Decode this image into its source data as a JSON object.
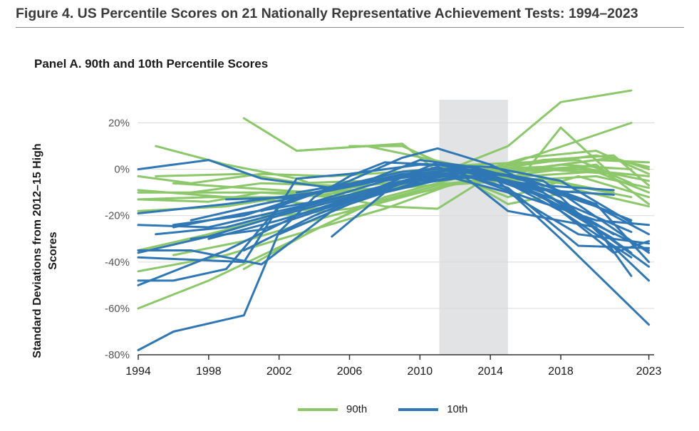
{
  "figure_title": "Figure 4. US Percentile Scores on 21 Nationally Representative Achievement Tests: 1994–2023",
  "panel_title": "Panel A. 90th and 10th Percentile Scores",
  "colors": {
    "p90": "#8cc76a",
    "p10": "#2f77b5",
    "shade": "#e2e3e5",
    "grid": "#d9d9d9",
    "axis": "#333333"
  },
  "chart_data": {
    "type": "line",
    "title": "Panel A. 90th and 10th Percentile Scores",
    "ylabel": "Standard Deviations from 2012–15 High Scores",
    "xlabel": "",
    "x_ticks": [
      1994,
      1998,
      2002,
      2006,
      2010,
      2014,
      2018,
      2023
    ],
    "y_ticks": [
      20,
      0,
      -20,
      -40,
      -60,
      -80
    ],
    "y_tick_labels": [
      "20%",
      "0%",
      "-20%",
      "-40%",
      "-60%",
      "-80%"
    ],
    "xlim": [
      1994,
      2023.3
    ],
    "ylim": [
      -80,
      30
    ],
    "grid": "horizontal",
    "shaded_region": [
      2011.1,
      2015
    ],
    "legend": [
      {
        "name": "90th",
        "key": "p90"
      },
      {
        "name": "10th",
        "key": "p10"
      }
    ],
    "series": [
      {
        "group": "p90",
        "x": [
          2000,
          2003,
          2009,
          2011
        ],
        "y": [
          22,
          8,
          11,
          -1
        ]
      },
      {
        "group": "p90",
        "x": [
          1995,
          1999,
          2003,
          2006,
          2011,
          2015,
          2018,
          2022
        ],
        "y": [
          10,
          2,
          -4,
          -12,
          -2,
          10,
          29,
          34
        ]
      },
      {
        "group": "p90",
        "x": [
          1994,
          1997,
          2001,
          2005,
          2009,
          2013,
          2019,
          2022
        ],
        "y": [
          -3,
          -6,
          -2,
          -3,
          -1,
          2,
          4,
          -6
        ]
      },
      {
        "group": "p90",
        "x": [
          1994,
          2004,
          2008,
          2011,
          2015,
          2022
        ],
        "y": [
          -10,
          -10,
          -16,
          -17,
          2,
          20
        ]
      },
      {
        "group": "p90",
        "x": [
          2006,
          2009,
          2012,
          2016,
          2018,
          2021
        ],
        "y": [
          10,
          10,
          0,
          -1,
          18,
          -3
        ]
      },
      {
        "group": "p90",
        "x": [
          2003,
          2007,
          2012,
          2016,
          2020,
          2023
        ],
        "y": [
          8,
          10,
          2,
          0,
          4,
          3
        ]
      },
      {
        "group": "p90",
        "x": [
          1994,
          1998,
          2003,
          2007,
          2011,
          2015,
          2020,
          2023
        ],
        "y": [
          -60,
          -48,
          -30,
          -15,
          -7,
          -5,
          -3,
          -8
        ]
      },
      {
        "group": "p90",
        "x": [
          1994,
          1999,
          2003,
          2008,
          2012,
          2016,
          2020,
          2023
        ],
        "y": [
          -44,
          -37,
          -28,
          -17,
          -6,
          -2,
          2,
          -15
        ]
      },
      {
        "group": "p90",
        "x": [
          1994,
          1998,
          2002,
          2006,
          2010,
          2014,
          2019,
          2023
        ],
        "y": [
          -35,
          -28,
          -20,
          -12,
          -5,
          -1,
          1,
          -5
        ]
      },
      {
        "group": "p90",
        "x": [
          1995,
          2000,
          2005,
          2010,
          2014,
          2018,
          2022
        ],
        "y": [
          -3,
          -2,
          -8,
          -5,
          -3,
          -6,
          -12
        ]
      },
      {
        "group": "p90",
        "x": [
          1994,
          1998,
          2001,
          2005,
          2009,
          2013,
          2017,
          2021
        ],
        "y": [
          -13,
          -14,
          -10,
          -12,
          -8,
          -5,
          -4,
          -10
        ]
      },
      {
        "group": "p90",
        "x": [
          1994,
          1999,
          2004,
          2008,
          2012,
          2016,
          2020,
          2023
        ],
        "y": [
          -18,
          -16,
          -10,
          -8,
          -4,
          2,
          6,
          1
        ]
      },
      {
        "group": "p90",
        "x": [
          1996,
          2000,
          2004,
          2008,
          2012,
          2016,
          2020,
          2023
        ],
        "y": [
          -37,
          -31,
          -22,
          -14,
          -6,
          -3,
          -1,
          -10
        ]
      },
      {
        "group": "p90",
        "x": [
          1994,
          1999,
          2004,
          2009,
          2013,
          2017,
          2021
        ],
        "y": [
          -9,
          -12,
          -15,
          -7,
          -2,
          0,
          -2
        ]
      },
      {
        "group": "p90",
        "x": [
          1997,
          2001,
          2005,
          2009,
          2013,
          2017,
          2021,
          2023
        ],
        "y": [
          -10,
          -6,
          -7,
          -3,
          0,
          1,
          5,
          0
        ]
      },
      {
        "group": "p90",
        "x": [
          2000,
          2004,
          2008,
          2012,
          2016,
          2020,
          2023
        ],
        "y": [
          -43,
          -26,
          -12,
          -4,
          5,
          8,
          -2
        ]
      },
      {
        "group": "p90",
        "x": [
          1994,
          1998,
          2003,
          2007,
          2011,
          2015,
          2019,
          2023
        ],
        "y": [
          -13,
          -12,
          -12,
          -9,
          -4,
          -1,
          0,
          -3
        ]
      },
      {
        "group": "p90",
        "x": [
          2001,
          2005,
          2009,
          2013,
          2017,
          2021,
          2023
        ],
        "y": [
          -20,
          -16,
          -7,
          -1,
          4,
          6,
          -7
        ]
      },
      {
        "group": "p90",
        "x": [
          1996,
          2000,
          2004,
          2008,
          2012,
          2015,
          2019,
          2023
        ],
        "y": [
          -6,
          -8,
          -10,
          -6,
          -2,
          -15,
          -9,
          -16
        ]
      },
      {
        "group": "p90",
        "x": [
          2002,
          2006,
          2010,
          2014,
          2018,
          2022
        ],
        "y": [
          -20,
          -17,
          -10,
          -3,
          2,
          0
        ]
      },
      {
        "group": "p90",
        "x": [
          2003,
          2007,
          2011,
          2015,
          2019,
          2023
        ],
        "y": [
          -6,
          -5,
          0,
          -12,
          -3,
          -12
        ]
      },
      {
        "group": "p10",
        "x": [
          1994,
          1996,
          2000,
          2002,
          2004,
          2006,
          2008,
          2011,
          2014,
          2018,
          2023
        ],
        "y": [
          -78,
          -70,
          -63,
          -27,
          -12,
          -3,
          3,
          2,
          -2,
          -30,
          -67
        ]
      },
      {
        "group": "p10",
        "x": [
          1994,
          1998,
          2001,
          2005,
          2009,
          2013,
          2016,
          2019,
          2022
        ],
        "y": [
          0,
          4,
          -4,
          -8,
          -1,
          1,
          -5,
          -20,
          -36
        ]
      },
      {
        "group": "p10",
        "x": [
          1994,
          1999,
          2003,
          2007,
          2011,
          2015,
          2019,
          2023
        ],
        "y": [
          -50,
          -35,
          -20,
          -10,
          3,
          -5,
          -20,
          -42
        ]
      },
      {
        "group": "p10",
        "x": [
          1994,
          1998,
          2002,
          2006,
          2010,
          2013,
          2017,
          2023
        ],
        "y": [
          -36,
          -29,
          -20,
          -12,
          -4,
          0,
          -5,
          -36
        ]
      },
      {
        "group": "p10",
        "x": [
          1994,
          1996,
          1999,
          2002,
          2006,
          2009,
          2011,
          2014,
          2018,
          2023
        ],
        "y": [
          -48,
          -48,
          -43,
          -16,
          -5,
          5,
          9,
          2,
          -12,
          -48
        ]
      },
      {
        "group": "p10",
        "x": [
          1994,
          2000,
          2003,
          2006,
          2010,
          2014,
          2018,
          2022
        ],
        "y": [
          -38,
          -40,
          -4,
          -2,
          2,
          1,
          -5,
          -23
        ]
      },
      {
        "group": "p10",
        "x": [
          1995,
          1999,
          2003,
          2007,
          2011,
          2015,
          2019,
          2023
        ],
        "y": [
          -28,
          -25,
          -17,
          -9,
          -2,
          -10,
          -28,
          -32
        ]
      },
      {
        "group": "p10",
        "x": [
          1996,
          2000,
          2004,
          2008,
          2012,
          2015,
          2020,
          2022
        ],
        "y": [
          -25,
          -19,
          -14,
          -5,
          0,
          -18,
          -25,
          -46
        ]
      },
      {
        "group": "p10",
        "x": [
          1994,
          1999,
          2004,
          2008,
          2012,
          2016,
          2020,
          2023
        ],
        "y": [
          -19,
          -15,
          -10,
          -4,
          0,
          -8,
          -24,
          -35
        ]
      },
      {
        "group": "p10",
        "x": [
          1997,
          2001,
          2005,
          2009,
          2013,
          2017,
          2021
        ],
        "y": [
          -22,
          -15,
          -9,
          -2,
          0,
          -10,
          -28
        ]
      },
      {
        "group": "p10",
        "x": [
          1998,
          2002,
          2006,
          2010,
          2014,
          2018,
          2022
        ],
        "y": [
          -30,
          -22,
          -13,
          -6,
          -2,
          -18,
          -38
        ]
      },
      {
        "group": "p10",
        "x": [
          1994,
          1997,
          2001,
          2005,
          2009,
          2013,
          2017,
          2021
        ],
        "y": [
          -35,
          -35,
          -41,
          -18,
          -6,
          -1,
          -12,
          -30
        ]
      },
      {
        "group": "p10",
        "x": [
          2000,
          2004,
          2008,
          2012,
          2016,
          2020,
          2023
        ],
        "y": [
          -35,
          -20,
          -8,
          -1,
          -12,
          -22,
          -24
        ]
      },
      {
        "group": "p10",
        "x": [
          2005,
          2008,
          2012,
          2016,
          2020,
          2023
        ],
        "y": [
          -29,
          -10,
          -3,
          -6,
          -16,
          -28
        ]
      },
      {
        "group": "p10",
        "x": [
          1996,
          2000,
          2004,
          2008,
          2012,
          2016,
          2020,
          2023
        ],
        "y": [
          -24,
          -20,
          -10,
          -4,
          0,
          -4,
          -15,
          -40
        ]
      },
      {
        "group": "p10",
        "x": [
          2003,
          2007,
          2010,
          2013,
          2017,
          2021
        ],
        "y": [
          -10,
          -5,
          4,
          1,
          -7,
          -9
        ]
      },
      {
        "group": "p10",
        "x": [
          1999,
          2003,
          2007,
          2011,
          2015,
          2019,
          2023
        ],
        "y": [
          -13,
          -12,
          -6,
          1,
          -8,
          -33,
          -34
        ]
      },
      {
        "group": "p10",
        "x": [
          1994,
          1998,
          2002,
          2006,
          2010,
          2014,
          2018,
          2022
        ],
        "y": [
          -24,
          -25,
          -18,
          -11,
          -3,
          -3,
          -10,
          -22
        ]
      },
      {
        "group": "p10",
        "x": [
          2001,
          2005,
          2009,
          2013,
          2017,
          2021
        ],
        "y": [
          -18,
          -8,
          -3,
          -1,
          -9,
          -11
        ]
      },
      {
        "group": "p10",
        "x": [
          1997,
          2001,
          2005,
          2009,
          2013,
          2017,
          2021,
          2023
        ],
        "y": [
          -30,
          -26,
          -16,
          -6,
          0,
          -12,
          -36,
          -31
        ]
      },
      {
        "group": "p10",
        "x": [
          2002,
          2006,
          2010,
          2014,
          2018,
          2022
        ],
        "y": [
          -28,
          -15,
          -5,
          -3,
          -14,
          -27
        ]
      }
    ]
  }
}
